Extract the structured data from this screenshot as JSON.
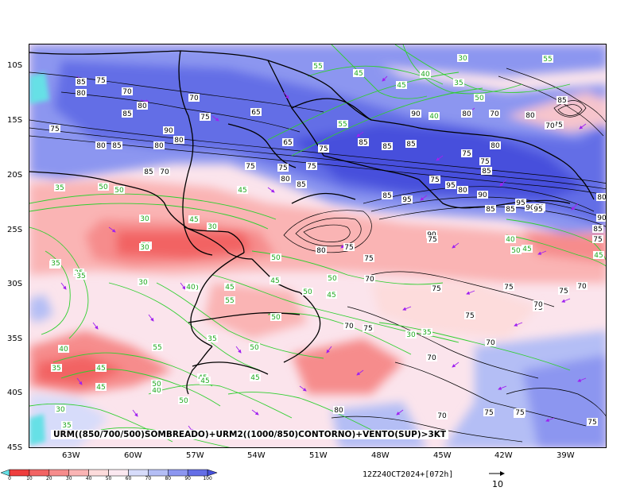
{
  "map": {
    "caption": "URM((850/700/500)SOMBREADO)+URM2((1000/850)CONTORNO)+VENTO(SUP)>3KT",
    "timestamp": "12Z24OCT2024+[072h]",
    "vector_reference": "10",
    "latitude_labels": [
      "10S",
      "15S",
      "20S",
      "25S",
      "30S",
      "35S",
      "40S",
      "45S"
    ],
    "longitude_labels": [
      "63W",
      "60W",
      "57W",
      "54W",
      "51W",
      "48W",
      "45W",
      "42W",
      "39W"
    ],
    "colorbar": {
      "ticks": [
        "0",
        "10",
        "20",
        "30",
        "40",
        "50",
        "60",
        "70",
        "80",
        "90",
        "100"
      ],
      "colors": [
        "#66e0e6",
        "#ee3e3e",
        "#f26464",
        "#f68c8c",
        "#fab4b4",
        "#fddcdc",
        "#fbe8f0",
        "#d7dcfa",
        "#b4bef5",
        "#8c96f0",
        "#646ee6",
        "#4650dc"
      ]
    },
    "black_contour_labels": [
      "85",
      "75",
      "80",
      "70",
      "80",
      "70",
      "85",
      "75",
      "65",
      "90",
      "80",
      "75",
      "80",
      "85",
      "80",
      "75",
      "85",
      "70",
      "65",
      "75",
      "75",
      "75",
      "80",
      "85",
      "85",
      "90",
      "85",
      "80",
      "70",
      "80",
      "75",
      "75",
      "85",
      "95",
      "90",
      "80",
      "75",
      "85",
      "95",
      "85",
      "85",
      "95",
      "90",
      "70",
      "95",
      "90",
      "85",
      "75",
      "80",
      "75",
      "85",
      "70",
      "80",
      "85",
      "90",
      "75",
      "80",
      "75",
      "75",
      "70",
      "75",
      "75",
      "70",
      "75",
      "75",
      "70",
      "75",
      "70",
      "75",
      "70",
      "70",
      "75",
      "80",
      "70",
      "75",
      "80",
      "75"
    ],
    "green_contour_labels": [
      "55",
      "30",
      "55",
      "40",
      "45",
      "35",
      "55",
      "45",
      "50",
      "40",
      "30",
      "35",
      "45",
      "50",
      "50",
      "45",
      "30",
      "50",
      "35",
      "30",
      "30",
      "50",
      "35",
      "35",
      "45",
      "35",
      "40",
      "50",
      "45",
      "45",
      "40",
      "45",
      "40",
      "35",
      "40",
      "55",
      "50",
      "45",
      "50",
      "50",
      "30",
      "35",
      "40",
      "45",
      "45",
      "35",
      "55",
      "45",
      "50",
      "50",
      "45",
      "30",
      "50",
      "45",
      "35"
    ]
  }
}
